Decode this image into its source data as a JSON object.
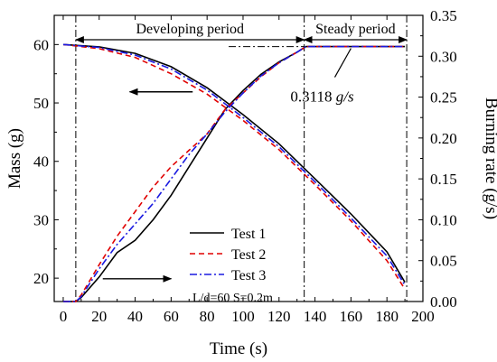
{
  "chart_data": {
    "type": "line",
    "xlabel": "Time (s)",
    "ylabel_left": "Mass (g)",
    "ylabel_right": "Burning rate (g/s)",
    "xlim": [
      -5,
      200
    ],
    "ylim_left": [
      16,
      65
    ],
    "ylim_right": [
      0.0,
      0.35
    ],
    "x_ticks": [
      0,
      20,
      40,
      60,
      80,
      100,
      120,
      140,
      160,
      180,
      200
    ],
    "y_left_ticks": [
      20,
      30,
      40,
      50,
      60
    ],
    "y_right_ticks": [
      "0.00",
      "0.05",
      "0.10",
      "0.15",
      "0.20",
      "0.25",
      "0.30",
      "0.35"
    ],
    "grid": false,
    "legend_position": "bottom-center",
    "series": [
      {
        "name": "Test 1",
        "color": "#000000",
        "dash": "solid",
        "mass": {
          "x": [
            0,
            20,
            40,
            60,
            80,
            100,
            120,
            140,
            160,
            180,
            190
          ],
          "y": [
            60.0,
            59.6,
            58.5,
            56.2,
            52.6,
            48.0,
            43.0,
            37.0,
            31.0,
            24.5,
            19.3
          ]
        },
        "rate": {
          "x": [
            0,
            7,
            10,
            20,
            30,
            40,
            50,
            60,
            70,
            80,
            90,
            100,
            110,
            120,
            130,
            135,
            150,
            170,
            190
          ],
          "y": [
            0.0,
            0.0,
            0.005,
            0.03,
            0.06,
            0.075,
            0.1,
            0.13,
            0.165,
            0.2,
            0.235,
            0.258,
            0.278,
            0.293,
            0.305,
            0.3118,
            0.3118,
            0.3118,
            0.3118
          ]
        }
      },
      {
        "name": "Test 2",
        "color": "#e00000",
        "dash": "6,4",
        "mass": {
          "x": [
            0,
            20,
            40,
            60,
            80,
            100,
            120,
            140,
            160,
            180,
            190
          ],
          "y": [
            60.0,
            59.3,
            57.8,
            55.0,
            51.5,
            47.0,
            42.0,
            36.0,
            29.8,
            23.0,
            18.1
          ]
        },
        "rate": {
          "x": [
            0,
            7,
            10,
            20,
            30,
            40,
            50,
            60,
            70,
            80,
            90,
            100,
            110,
            120,
            130,
            135,
            150,
            170,
            190
          ],
          "y": [
            0.0,
            0.0,
            0.008,
            0.045,
            0.08,
            0.11,
            0.14,
            0.165,
            0.185,
            0.205,
            0.235,
            0.255,
            0.275,
            0.292,
            0.305,
            0.3118,
            0.3118,
            0.3118,
            0.3118
          ]
        }
      },
      {
        "name": "Test 3",
        "color": "#1a1ae0",
        "dash": "8,3,2,3",
        "mass": {
          "x": [
            0,
            20,
            40,
            60,
            80,
            100,
            120,
            140,
            160,
            180,
            190
          ],
          "y": [
            60.0,
            59.5,
            58.2,
            55.8,
            52.2,
            47.5,
            42.5,
            36.5,
            30.3,
            23.8,
            18.8
          ]
        },
        "rate": {
          "x": [
            0,
            7,
            10,
            20,
            30,
            40,
            50,
            60,
            70,
            80,
            90,
            100,
            110,
            120,
            130,
            135,
            150,
            170,
            190
          ],
          "y": [
            0.0,
            0.0,
            0.006,
            0.04,
            0.07,
            0.095,
            0.12,
            0.15,
            0.18,
            0.205,
            0.232,
            0.255,
            0.276,
            0.292,
            0.305,
            0.3118,
            0.3118,
            0.3118,
            0.3118
          ]
        }
      }
    ],
    "vlines_x": [
      7,
      134,
      191
    ],
    "annotations": {
      "developing_period": "Developing period",
      "steady_period": "Steady period",
      "steady_rate_value": "0.3118",
      "steady_rate_unit": "g/s",
      "condition": "L/d=60 S=0.2m"
    }
  }
}
